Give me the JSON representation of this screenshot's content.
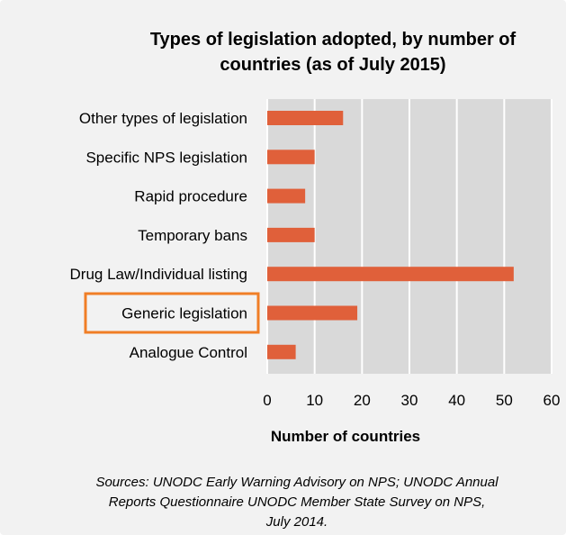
{
  "chart_data": {
    "type": "bar",
    "orientation": "horizontal",
    "title": "Types of legislation adopted, by number of\ncountries (as of July 2015)",
    "categories": [
      "Other types of legislation",
      "Specific NPS legislation",
      "Rapid procedure",
      "Temporary bans",
      "Drug Law/Individual listing",
      "Generic legislation",
      "Analogue Control"
    ],
    "values": [
      16,
      10,
      8,
      10,
      52,
      19,
      6
    ],
    "xlabel": "Number of countries",
    "ylabel": "",
    "xlim": [
      0,
      60
    ],
    "xticks": [
      "0",
      "10",
      "20",
      "30",
      "40",
      "50",
      "60"
    ],
    "grid": true,
    "bar_color": "#e0603a",
    "highlighted_category": "Generic legislation",
    "highlight_color": "#f07e26"
  },
  "sources": "Sources: UNODC Early Warning Advisory on NPS; UNODC Annual\nReports Questionnaire UNODC Member State Survey on NPS,\nJuly 2014."
}
